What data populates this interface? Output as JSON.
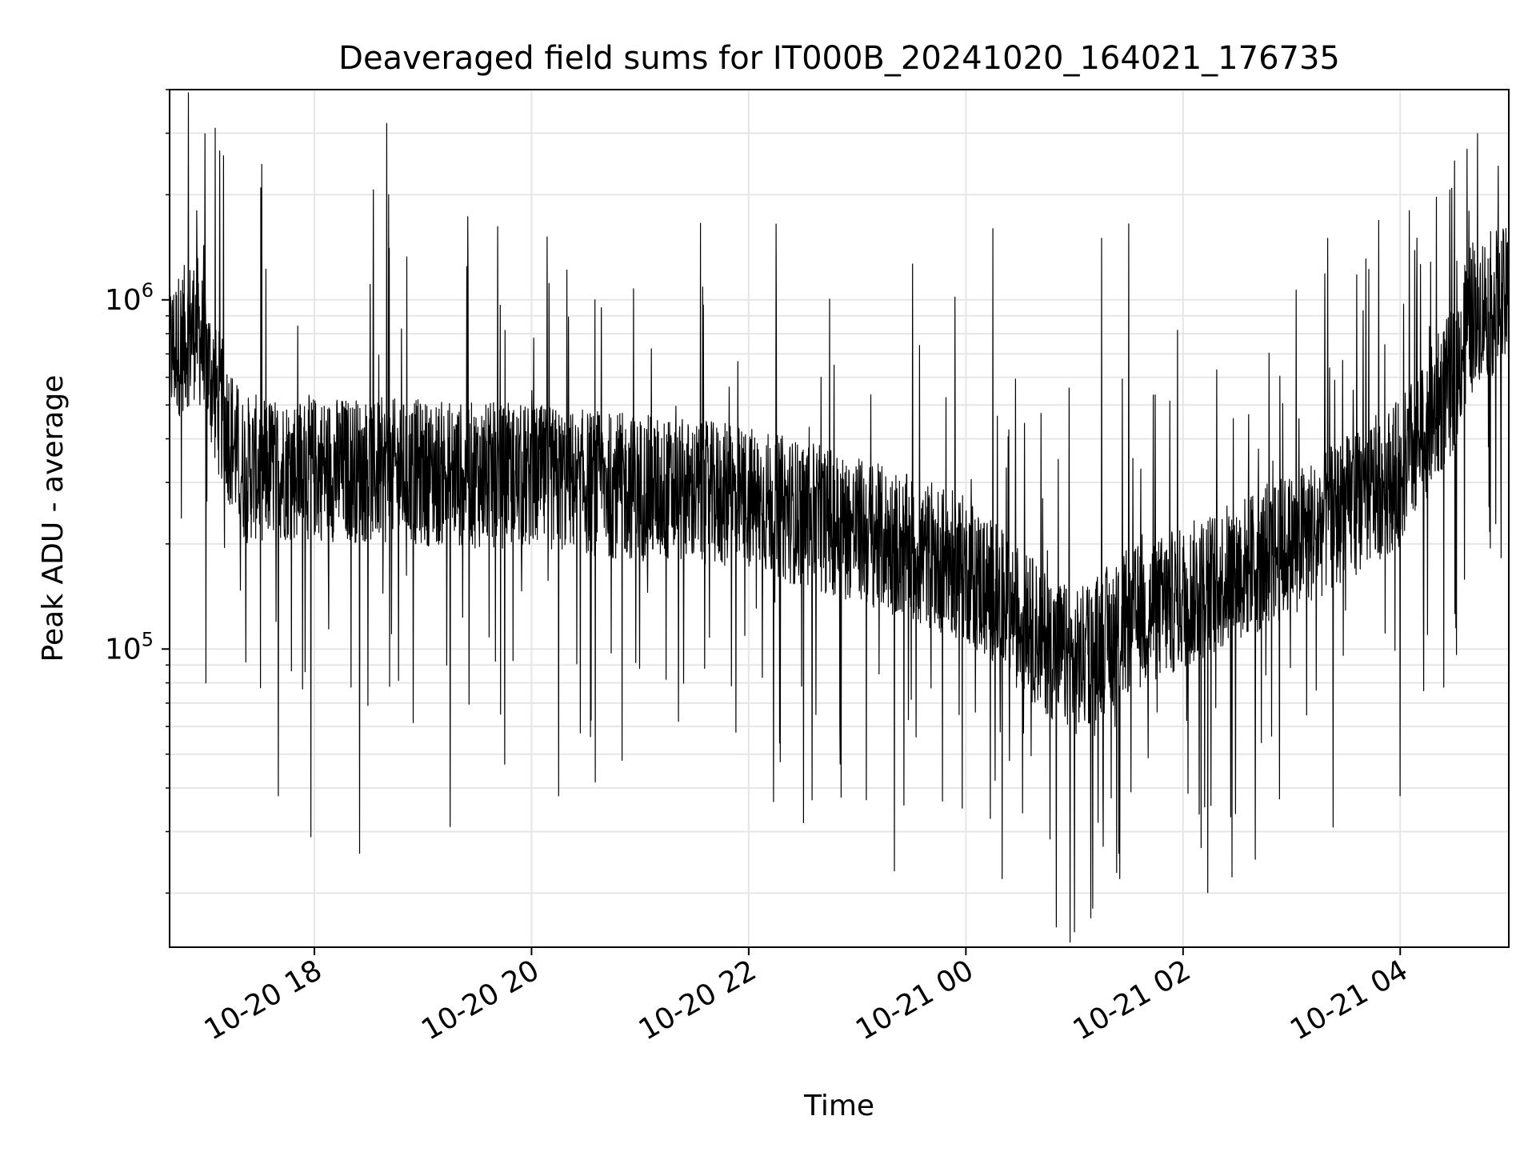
{
  "chart_data": {
    "type": "line",
    "title": "Deaveraged field sums for IT000B_20241020_164021_176735",
    "xlabel": "Time",
    "ylabel": "Peak ADU - average",
    "x_axis": {
      "kind": "datetime",
      "range": [
        "2024-10-20 16:40",
        "2024-10-21 05:00"
      ],
      "ticks": [
        {
          "value": "2024-10-20 18:00",
          "label": "10-20 18"
        },
        {
          "value": "2024-10-20 20:00",
          "label": "10-20 20"
        },
        {
          "value": "2024-10-20 22:00",
          "label": "10-20 22"
        },
        {
          "value": "2024-10-21 00:00",
          "label": "10-21 00"
        },
        {
          "value": "2024-10-21 02:00",
          "label": "10-21 02"
        },
        {
          "value": "2024-10-21 04:00",
          "label": "10-21 04"
        }
      ]
    },
    "y_axis": {
      "scale": "log",
      "range": [
        14000,
        4000000
      ],
      "major_ticks": [
        {
          "value": 100000,
          "base": "10",
          "exponent": "5"
        },
        {
          "value": 1000000,
          "base": "10",
          "exponent": "6"
        }
      ]
    },
    "grid": true,
    "line_color": "#000000",
    "grid_color": "#e6e6e6",
    "series": [
      {
        "baseline": [
          [
            "2024-10-20 16:40",
            700000
          ],
          [
            "2024-10-20 16:55",
            850000
          ],
          [
            "2024-10-20 17:05",
            550000
          ],
          [
            "2024-10-20 17:20",
            330000
          ],
          [
            "2024-10-20 18:00",
            330000
          ],
          [
            "2024-10-20 19:00",
            320000
          ],
          [
            "2024-10-20 20:00",
            310000
          ],
          [
            "2024-10-20 21:00",
            290000
          ],
          [
            "2024-10-20 22:00",
            270000
          ],
          [
            "2024-10-20 23:00",
            220000
          ],
          [
            "2024-10-21 00:00",
            170000
          ],
          [
            "2024-10-21 00:40",
            110000
          ],
          [
            "2024-10-21 01:00",
            90000
          ],
          [
            "2024-10-21 01:30",
            120000
          ],
          [
            "2024-10-21 02:00",
            140000
          ],
          [
            "2024-10-21 03:00",
            200000
          ],
          [
            "2024-10-21 04:00",
            320000
          ],
          [
            "2024-10-21 04:30",
            600000
          ],
          [
            "2024-10-21 04:40",
            950000
          ],
          [
            "2024-10-21 05:00",
            1000000
          ]
        ],
        "peaks": [
          [
            "2024-10-20 16:55",
            1800000
          ],
          [
            "2024-10-20 17:00",
            1950000
          ],
          [
            "2024-10-20 18:40",
            3200000
          ],
          [
            "2024-10-20 18:41",
            2000000
          ],
          [
            "2024-10-20 19:25",
            1150000
          ],
          [
            "2024-10-20 20:35",
            1000000
          ],
          [
            "2024-10-20 22:40",
            600000
          ],
          [
            "2024-10-20 23:58",
            1850000
          ],
          [
            "2024-10-21 00:15",
            1600000
          ],
          [
            "2024-10-21 01:15",
            1500000
          ],
          [
            "2024-10-21 01:30",
            1650000
          ],
          [
            "2024-10-21 03:20",
            1500000
          ],
          [
            "2024-10-21 04:05",
            1800000
          ],
          [
            "2024-10-21 04:30",
            2500000
          ],
          [
            "2024-10-21 04:37",
            2700000
          ]
        ],
        "troughs": [
          [
            "2024-10-20 17:00",
            80000
          ],
          [
            "2024-10-20 17:40",
            38000
          ],
          [
            "2024-10-20 17:58",
            29000
          ],
          [
            "2024-10-20 18:25",
            26000
          ],
          [
            "2024-10-20 19:15",
            31000
          ],
          [
            "2024-10-20 20:15",
            38000
          ],
          [
            "2024-10-20 20:50",
            48000
          ],
          [
            "2024-10-20 22:35",
            37000
          ],
          [
            "2024-10-20 23:05",
            37000
          ],
          [
            "2024-10-20 23:58",
            35000
          ],
          [
            "2024-10-21 00:20",
            22000
          ],
          [
            "2024-10-21 00:50",
            16000
          ],
          [
            "2024-10-21 01:00",
            15500
          ],
          [
            "2024-10-21 01:25",
            22000
          ],
          [
            "2024-10-21 02:10",
            27000
          ],
          [
            "2024-10-21 02:40",
            25000
          ],
          [
            "2024-10-21 04:00",
            38000
          ],
          [
            "2024-10-21 04:15",
            110000
          ]
        ]
      }
    ]
  }
}
